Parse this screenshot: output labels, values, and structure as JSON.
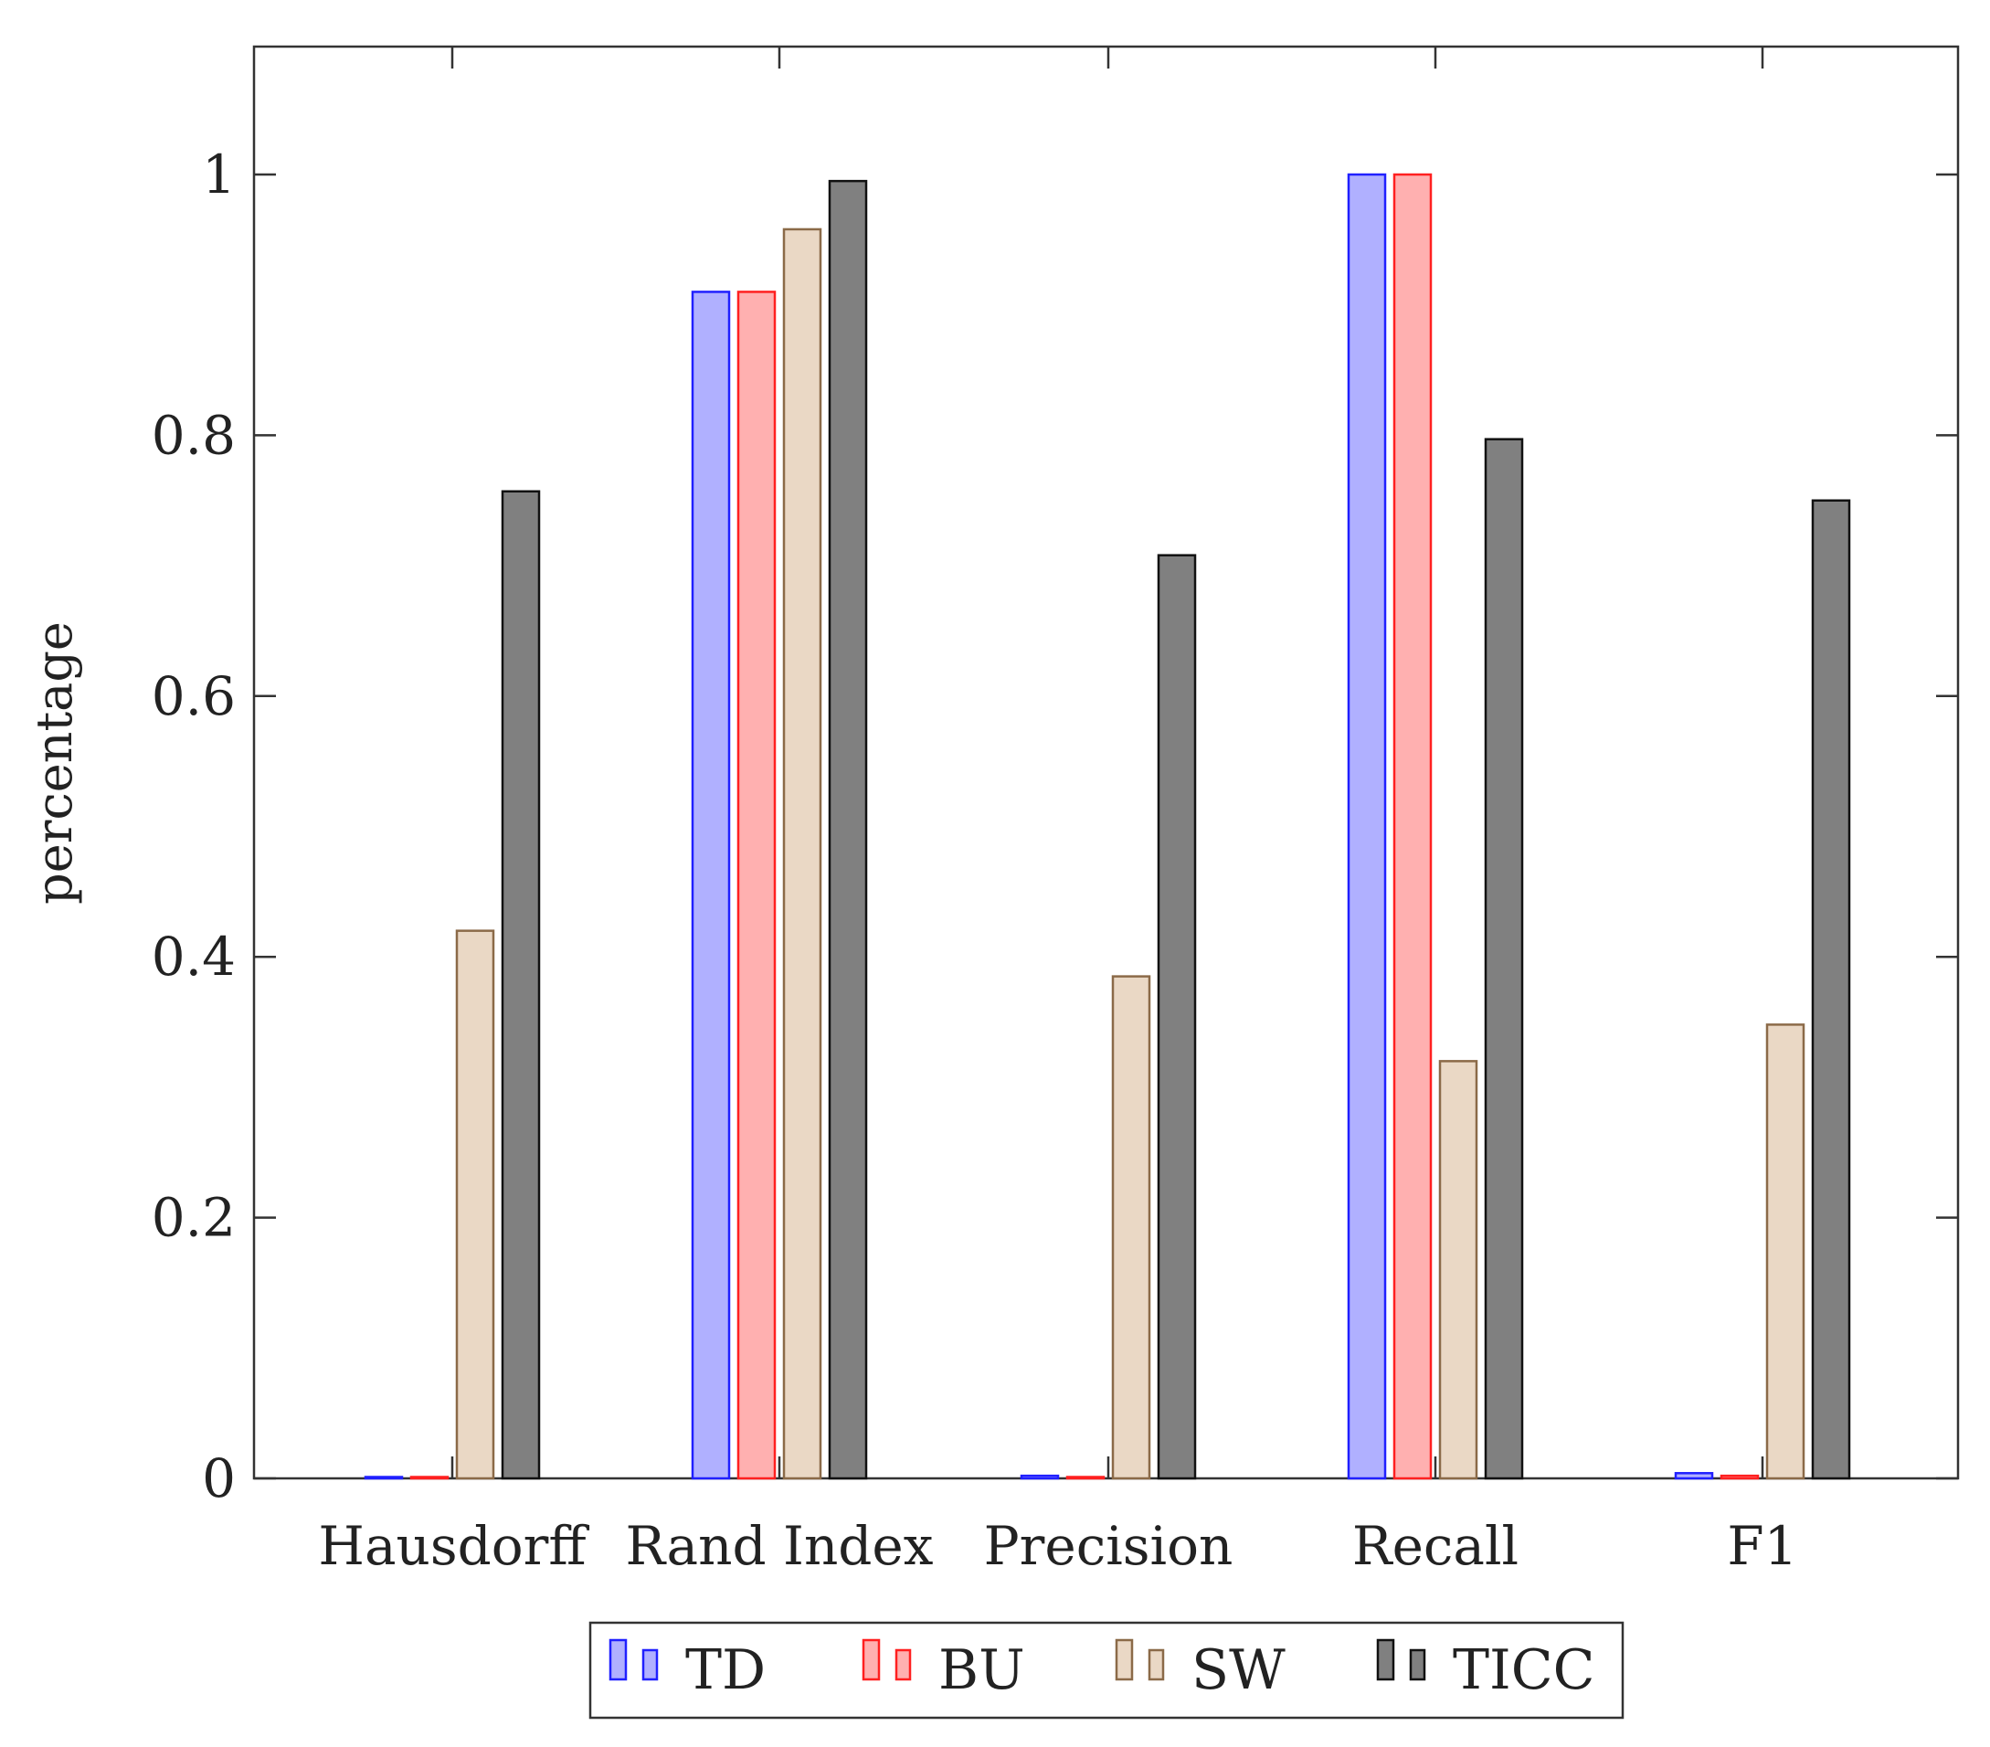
{
  "chart_data": {
    "type": "bar",
    "title": "",
    "xlabel": "",
    "ylabel": "percentage",
    "ylim": [
      0,
      1.1
    ],
    "yticks": [
      0,
      0.2,
      0.4,
      0.6,
      0.8,
      1
    ],
    "ytick_labels": [
      "0",
      "0.2",
      "0.4",
      "0.6",
      "0.8",
      "1"
    ],
    "categories": [
      "Hausdorff",
      "Rand Index",
      "Precision",
      "Recall",
      "F1"
    ],
    "grid": false,
    "legend": "bottom-center",
    "series": [
      {
        "name": "TD",
        "fill": "#b0b0ff",
        "stroke": "#2020ff",
        "values": [
          0.0,
          0.91,
          0.002,
          1.0,
          0.004
        ]
      },
      {
        "name": "BU",
        "fill": "#ffb0b0",
        "stroke": "#ff2020",
        "values": [
          0.0,
          0.91,
          0.0,
          1.0,
          0.002
        ]
      },
      {
        "name": "SW",
        "fill": "#ead8c5",
        "stroke": "#8b6a48",
        "values": [
          0.42,
          0.958,
          0.385,
          0.32,
          0.348
        ]
      },
      {
        "name": "TICC",
        "fill": "#808080",
        "stroke": "#111111",
        "values": [
          0.757,
          0.995,
          0.708,
          0.797,
          0.75
        ]
      }
    ]
  }
}
